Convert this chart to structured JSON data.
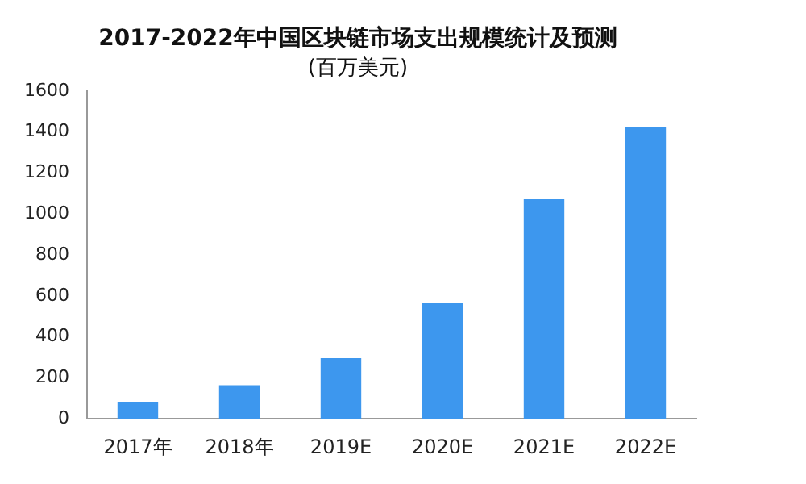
{
  "chart_data": {
    "type": "bar",
    "title": "2017-2022年中国区块链市场支出规模统计及预测",
    "subtitle": "(百万美元)",
    "categories": [
      "2017年",
      "2018年",
      "2019E",
      "2020E",
      "2021E",
      "2022E"
    ],
    "values": [
      83,
      164,
      296,
      566,
      1072,
      1425
    ],
    "color": "#3d97ee",
    "ylim": [
      0,
      1600
    ],
    "yticks": [
      0,
      200,
      400,
      600,
      800,
      1000,
      1200,
      1400,
      1600
    ],
    "grid": false,
    "legend": false
  }
}
